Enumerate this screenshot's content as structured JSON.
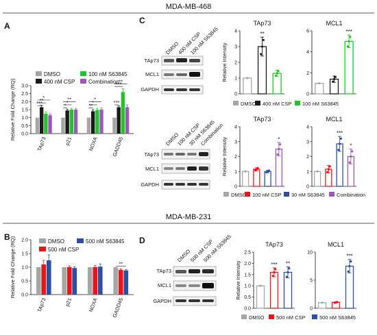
{
  "sections": {
    "top_title": "MDA-MB-468",
    "bottom_title": "MDA-MB-231"
  },
  "colors": {
    "dmso": "#a6a6a6",
    "csp": "#1a1a1a",
    "s63845_green": "#22c32a",
    "combination": "#9b59b6",
    "csp_red": "#e8161b",
    "s63845_blue": "#2c4ea3"
  },
  "panels": {
    "A": {
      "letter": "A",
      "legend": [
        "DMSO",
        "400 nM CSP",
        "100 nM S63845",
        "Combination"
      ]
    },
    "B": {
      "letter": "B",
      "legend": [
        "DMSO",
        "500 nM CSP",
        "500 nM S63845"
      ]
    },
    "C": {
      "letter": "C",
      "blot1": {
        "lanes": [
          "DMSO",
          "400 nM CSP",
          "100 nM S63845"
        ],
        "rows": [
          "TAp73",
          "MCL1",
          "GAPDH"
        ]
      },
      "blot2": {
        "lanes": [
          "DMSO",
          "100 nM CSP",
          "30 nM S63845",
          "Combination"
        ],
        "rows": [
          "TAp73",
          "MCL1",
          "GAPDH"
        ]
      },
      "legend1": [
        "DMSO",
        "400 nM CSP",
        "100 nM S63845"
      ],
      "legend2": [
        "DMSO",
        "100 nM CSP",
        "30 nM S63845",
        "Combination"
      ]
    },
    "D": {
      "letter": "D",
      "blot": {
        "lanes": [
          "DMSO",
          "500 nM CSP",
          "500 nM S63845"
        ],
        "rows": [
          "TAp73",
          "MCL1",
          "GAPDH"
        ]
      },
      "legend": [
        "DMSO",
        "500 nM CSP",
        "500 nM S63845"
      ]
    }
  },
  "chart_data": [
    {
      "id": "A",
      "type": "bar",
      "categories": [
        "TAp73",
        "p21",
        "NOXA",
        "GADD45"
      ],
      "series": [
        {
          "name": "DMSO",
          "values": [
            1.0,
            1.0,
            1.0,
            1.0
          ],
          "err": [
            0.0,
            0.0,
            0.0,
            0.0
          ]
        },
        {
          "name": "400 nM CSP",
          "values": [
            1.65,
            1.45,
            1.4,
            1.65
          ],
          "err": [
            0.12,
            0.08,
            0.1,
            0.08
          ]
        },
        {
          "name": "100 nM S63845",
          "values": [
            1.25,
            1.5,
            1.48,
            2.6
          ],
          "err": [
            0.1,
            0.08,
            0.1,
            0.2
          ]
        },
        {
          "name": "Combination",
          "values": [
            1.15,
            1.5,
            1.5,
            1.65
          ],
          "err": [
            0.08,
            0.08,
            0.1,
            0.15
          ]
        }
      ],
      "ylabel": "Relative Fold Change (RQ)",
      "ylim": [
        0,
        3.0
      ],
      "yticks": [
        "0.0",
        "0.5",
        "1.0",
        "1.5",
        "2.0",
        "2.5",
        "3.0"
      ],
      "significance": [
        {
          "cat": 0,
          "from": 0,
          "to": 1,
          "y": 1.75,
          "text": "***"
        },
        {
          "cat": 0,
          "from": 0,
          "to": 2,
          "y": 1.92,
          "text": "**"
        },
        {
          "cat": 0,
          "from": 0,
          "to": 3,
          "y": 2.1,
          "text": "*"
        },
        {
          "cat": 1,
          "from": 0,
          "to": 1,
          "y": 1.6,
          "text": "*"
        },
        {
          "cat": 1,
          "from": 0,
          "to": 2,
          "y": 1.8,
          "text": "*"
        },
        {
          "cat": 1,
          "from": 0,
          "to": 3,
          "y": 2.0,
          "text": "**"
        },
        {
          "cat": 2,
          "from": 0,
          "to": 1,
          "y": 1.6,
          "text": "**"
        },
        {
          "cat": 2,
          "from": 0,
          "to": 2,
          "y": 1.8,
          "text": "*"
        },
        {
          "cat": 2,
          "from": 0,
          "to": 3,
          "y": 2.0,
          "text": "*"
        },
        {
          "cat": 3,
          "from": 0,
          "to": 1,
          "y": 1.8,
          "text": "***"
        },
        {
          "cat": 3,
          "from": 0,
          "to": 2,
          "y": 2.95,
          "text": "***"
        },
        {
          "cat": 3,
          "from": 0,
          "to": 3,
          "y": 3.1,
          "text": "**"
        }
      ]
    },
    {
      "id": "B",
      "type": "bar",
      "categories": [
        "TAp73",
        "p21",
        "NOXA",
        "GADD45"
      ],
      "series": [
        {
          "name": "DMSO",
          "values": [
            1.0,
            1.0,
            1.0,
            1.0
          ],
          "err": [
            0.0,
            0.0,
            0.0,
            0.0
          ]
        },
        {
          "name": "500 nM CSP",
          "values": [
            1.1,
            1.0,
            1.0,
            0.9
          ],
          "err": [
            0.15,
            0.05,
            0.06,
            0.04
          ]
        },
        {
          "name": "500 nM S63845",
          "values": [
            1.25,
            0.97,
            1.02,
            0.88
          ],
          "err": [
            0.2,
            0.05,
            0.1,
            0.03
          ]
        }
      ],
      "ylabel": "Relative Fold Change (RQ)",
      "ylim": [
        0,
        2.0
      ],
      "yticks": [
        "0.0",
        "0.5",
        "1.0",
        "1.5",
        "2.0"
      ],
      "significance": [
        {
          "cat": 3,
          "from": 0,
          "to": 2,
          "y": 1.04,
          "text": "**"
        }
      ]
    },
    {
      "id": "C1",
      "type": "bar",
      "title": "TAp73",
      "categories": [
        "DMSO",
        "400 nM CSP",
        "100 nM S63845"
      ],
      "values": [
        1.0,
        3.0,
        1.3
      ],
      "err": [
        0.0,
        0.6,
        0.2
      ],
      "ylabel": "Relative Intensity",
      "ylim": [
        0,
        4
      ],
      "yticks": [
        "0",
        "1",
        "2",
        "3",
        "4"
      ],
      "stars": [
        "",
        "**",
        ""
      ]
    },
    {
      "id": "C2",
      "type": "bar",
      "title": "MCL1",
      "categories": [
        "DMSO",
        "400 nM CSP",
        "100 nM S63845"
      ],
      "values": [
        1.0,
        1.4,
        5.0
      ],
      "err": [
        0.0,
        0.3,
        0.6
      ],
      "ylim": [
        0,
        6
      ],
      "yticks": [
        "0",
        "2",
        "4",
        "6"
      ],
      "stars": [
        "",
        "",
        "***"
      ]
    },
    {
      "id": "C3",
      "type": "bar",
      "title": "TAp73",
      "categories": [
        "DMSO",
        "100 nM CSP",
        "30 nM S63845",
        "Combination"
      ],
      "values": [
        1.0,
        1.15,
        1.0,
        2.5
      ],
      "err": [
        0.0,
        0.1,
        0.08,
        0.45
      ],
      "ylabel": "Relative Intensity",
      "ylim": [
        0,
        4
      ],
      "yticks": [
        "0",
        "1",
        "2",
        "3",
        "4"
      ],
      "stars": [
        "",
        "",
        "",
        "*"
      ]
    },
    {
      "id": "C4",
      "type": "bar",
      "title": "MCL1",
      "categories": [
        "DMSO",
        "100 nM CSP",
        "30 nM S63845",
        "Combination"
      ],
      "values": [
        1.0,
        1.15,
        2.85,
        2.0
      ],
      "err": [
        0.0,
        0.25,
        0.5,
        0.5
      ],
      "ylim": [
        0,
        4
      ],
      "yticks": [
        "0",
        "1",
        "2",
        "3",
        "4"
      ],
      "stars": [
        "",
        "",
        "***",
        "*"
      ]
    },
    {
      "id": "D1",
      "type": "bar",
      "title": "TAp73",
      "categories": [
        "DMSO",
        "500 nM CSP",
        "500 nM S63845"
      ],
      "values": [
        1.0,
        1.6,
        1.6
      ],
      "err": [
        0.0,
        0.2,
        0.25
      ],
      "ylabel": "Relative Intensity",
      "ylim": [
        0,
        2.5
      ],
      "yticks": [
        "0.0",
        "0.5",
        "1.0",
        "1.5",
        "2.0",
        "2.5"
      ],
      "stars": [
        "",
        "***",
        "**"
      ]
    },
    {
      "id": "D2",
      "type": "bar",
      "title": "MCL1",
      "categories": [
        "DMSO",
        "500 nM CSP",
        "500 nM S63845"
      ],
      "values": [
        1.0,
        1.05,
        7.5
      ],
      "err": [
        0.0,
        0.1,
        1.2
      ],
      "ylim": [
        0,
        10
      ],
      "yticks": [
        "0",
        "5",
        "10"
      ],
      "stars": [
        "",
        "",
        "***"
      ]
    }
  ]
}
